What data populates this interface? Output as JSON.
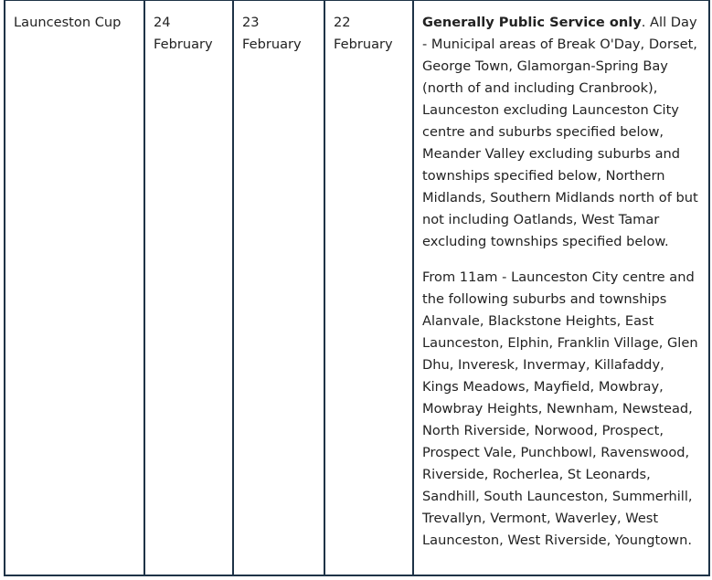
{
  "row": {
    "event": "Launceston Cup",
    "col2": {
      "day": "24",
      "month": "February"
    },
    "col3": {
      "day": "23",
      "month": "February"
    },
    "col4": {
      "day": "22",
      "month": "February"
    },
    "details": {
      "p1_bold": "Generally Public Service only",
      "p1_rest": ". All Day - Municipal areas of Break O'Day, Dorset, George Town, Glamorgan-Spring Bay (north of and including Cranbrook), Launceston excluding Launceston City centre and suburbs specified below, Meander Valley excluding suburbs and townships specified below, Northern Midlands, Southern Midlands north of but not including Oatlands, West Tamar excluding townships specified below.",
      "p2": "From 11am - Launceston City centre and the following suburbs and townships Alanvale, Blackstone Heights, East Launceston, Elphin, Franklin Village, Glen Dhu, Inveresk, Invermay, Killafaddy, Kings Meadows, Mayfield, Mowbray, Mowbray Heights, Newnham, Newstead, North Riverside, Norwood, Prospect, Prospect Vale, Punchbowl, Ravenswood, Riverside, Rocherlea, St Leonards, Sandhill, South Launceston, Summerhill, Trevallyn, Vermont, Waverley, West Launceston, West Riverside, Youngtown."
    }
  },
  "colors": {
    "border": "#1e3347",
    "text": "#222222"
  }
}
